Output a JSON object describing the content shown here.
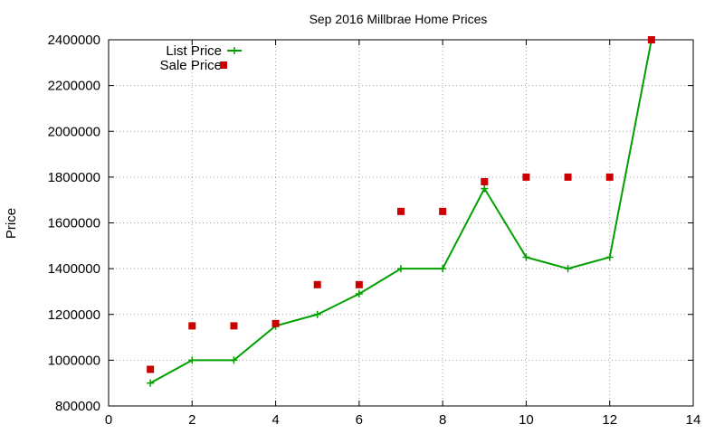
{
  "chart_data": {
    "type": "line",
    "title": "Sep 2016 Millbrae Home Prices",
    "xlabel": "",
    "ylabel": "Price",
    "xlim": [
      0,
      14
    ],
    "ylim": [
      800000,
      2400000
    ],
    "xticks": [
      0,
      2,
      4,
      6,
      8,
      10,
      12,
      14
    ],
    "yticks": [
      800000,
      1000000,
      1200000,
      1400000,
      1600000,
      1800000,
      2000000,
      2200000,
      2400000
    ],
    "grid": true,
    "legend_position": "top-left",
    "series": [
      {
        "name": "List Price",
        "type": "line",
        "marker": "plus",
        "color": "#00a000",
        "x": [
          1,
          2,
          3,
          4,
          5,
          6,
          7,
          8,
          9,
          10,
          11,
          12,
          13
        ],
        "y": [
          900000,
          1000000,
          1000000,
          1150000,
          1200000,
          1290000,
          1400000,
          1400000,
          1750000,
          1450000,
          1400000,
          1450000,
          2400000
        ]
      },
      {
        "name": "Sale Price",
        "type": "scatter",
        "marker": "square",
        "color": "#cc0000",
        "x": [
          1,
          2,
          3,
          4,
          5,
          6,
          7,
          8,
          9,
          10,
          11,
          12,
          13
        ],
        "y": [
          960000,
          1150000,
          1150000,
          1160000,
          1330000,
          1330000,
          1650000,
          1650000,
          1780000,
          1800000,
          1800000,
          1800000,
          2400000
        ]
      }
    ]
  }
}
